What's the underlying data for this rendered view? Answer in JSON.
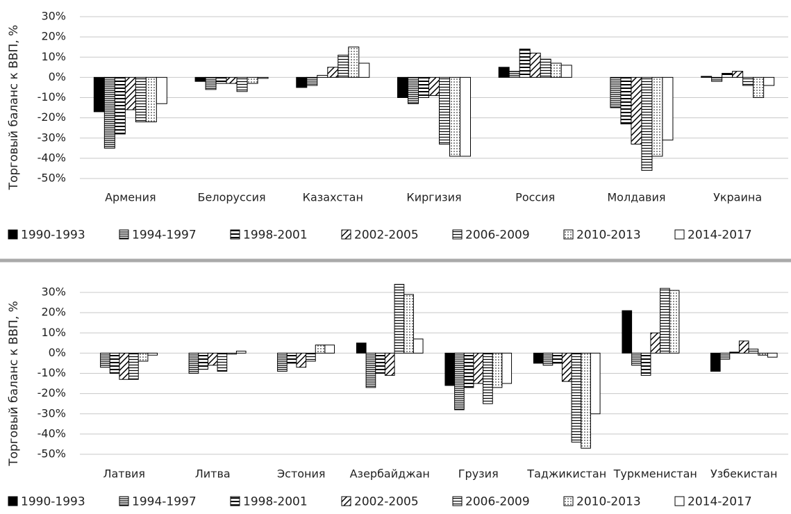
{
  "chart_data": [
    {
      "type": "bar",
      "ylabel": "Торговый баланс к ВВП, %",
      "categories": [
        "Армения",
        "Белоруссия",
        "Казахстан",
        "Киргизия",
        "Россия",
        "Молдавия",
        "Украина"
      ],
      "ylim": [
        -50,
        30
      ],
      "yticks": [
        {
          "value": 30,
          "label": "30%"
        },
        {
          "value": 20,
          "label": "20%"
        },
        {
          "value": 10,
          "label": "10%"
        },
        {
          "value": 0,
          "label": "0%"
        },
        {
          "value": -10,
          "label": "-10%"
        },
        {
          "value": -20,
          "label": "-20%"
        },
        {
          "value": -30,
          "label": "-30%"
        },
        {
          "value": -40,
          "label": "-40%"
        },
        {
          "value": -50,
          "label": "-50%"
        }
      ],
      "grid": true,
      "series": [
        {
          "name": "1990-1993",
          "color": "#000000",
          "pattern": "solid",
          "values": [
            -17,
            -2,
            -5,
            -10,
            5,
            null,
            0.5
          ]
        },
        {
          "name": "1994-1997",
          "color": "#000000",
          "pattern": "hlines",
          "values": [
            -35,
            -6,
            -4,
            -13,
            3,
            -15,
            -2
          ]
        },
        {
          "name": "1998-2001",
          "color": "#000000",
          "pattern": "hlines-wide",
          "values": [
            -28,
            -3,
            1,
            -10,
            14,
            -23,
            2
          ]
        },
        {
          "name": "2002-2005",
          "color": "#000000",
          "pattern": "diagonal",
          "values": [
            -16,
            -3,
            5,
            -9,
            12,
            -33,
            3
          ]
        },
        {
          "name": "2006-2009",
          "color": "#000000",
          "pattern": "boxed",
          "values": [
            -22,
            -7,
            11,
            -33,
            9,
            -46,
            -4
          ]
        },
        {
          "name": "2010-2013",
          "color": "#000000",
          "pattern": "dots",
          "values": [
            -22,
            -3,
            15,
            -39,
            7,
            -39,
            -10
          ]
        },
        {
          "name": "2014-2017",
          "color": "#000000",
          "pattern": "none",
          "values": [
            -13,
            -0.5,
            7,
            -39,
            6,
            -31,
            -4
          ]
        }
      ]
    },
    {
      "type": "bar",
      "ylabel": "Торговый баланс к ВВП, %",
      "categories": [
        "Латвия",
        "Литва",
        "Эстония",
        "Азербайджан",
        "Грузия",
        "Таджикистан",
        "Туркменистан",
        "Узбекистан"
      ],
      "ylim": [
        -50,
        30
      ],
      "yticks": [
        {
          "value": 30,
          "label": "30%"
        },
        {
          "value": 20,
          "label": "20%"
        },
        {
          "value": 10,
          "label": "10%"
        },
        {
          "value": 0,
          "label": "0%"
        },
        {
          "value": -10,
          "label": "-10%"
        },
        {
          "value": -20,
          "label": "-20%"
        },
        {
          "value": -30,
          "label": "-30%"
        },
        {
          "value": -40,
          "label": "-40%"
        },
        {
          "value": -50,
          "label": "-50%"
        }
      ],
      "grid": true,
      "series": [
        {
          "name": "1990-1993",
          "color": "#000000",
          "pattern": "solid",
          "values": [
            null,
            null,
            null,
            5,
            -16,
            -5,
            21,
            -9
          ]
        },
        {
          "name": "1994-1997",
          "color": "#000000",
          "pattern": "hlines",
          "values": [
            -7,
            -10,
            -9,
            -17,
            -28,
            -6,
            -6,
            -3
          ]
        },
        {
          "name": "1998-2001",
          "color": "#000000",
          "pattern": "hlines-wide",
          "values": [
            -10,
            -8,
            -5,
            -10,
            -17,
            -5,
            -11,
            0.5
          ]
        },
        {
          "name": "2002-2005",
          "color": "#000000",
          "pattern": "diagonal",
          "values": [
            -13,
            -6,
            -7,
            -11,
            -15,
            -14,
            10,
            6
          ]
        },
        {
          "name": "2006-2009",
          "color": "#000000",
          "pattern": "boxed",
          "values": [
            -13,
            -9,
            -4,
            34,
            -25,
            -44,
            32,
            2
          ]
        },
        {
          "name": "2010-2013",
          "color": "#000000",
          "pattern": "dots",
          "values": [
            -4,
            -0.5,
            4,
            29,
            -17,
            -47,
            31,
            -1
          ]
        },
        {
          "name": "2014-2017",
          "color": "#000000",
          "pattern": "none",
          "values": [
            -1,
            1,
            4,
            7,
            -15,
            -30,
            null,
            -2
          ]
        }
      ]
    }
  ]
}
